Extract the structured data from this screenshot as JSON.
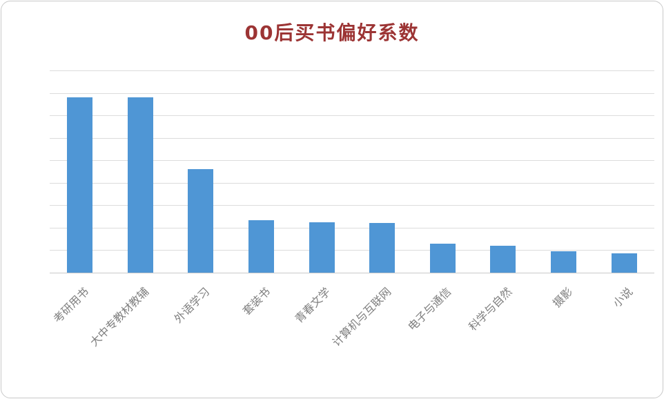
{
  "page": {
    "background": "#ffffff",
    "card_border_color": "#c9c9c9"
  },
  "chart_data": {
    "type": "bar",
    "title": "00后买书偏好系数",
    "categories": [
      "考研用书",
      "大中专教材教辅",
      "外语学习",
      "套装书",
      "青春文学",
      "计算机与互联网",
      "电子与通信",
      "科学与自然",
      "摄影",
      "小说"
    ],
    "values": [
      7.8,
      7.8,
      4.6,
      2.35,
      2.25,
      2.2,
      1.3,
      1.2,
      0.95,
      0.85
    ],
    "xlabel": "",
    "ylabel": "",
    "ylim": [
      0,
      9
    ],
    "gridline_intervals": 9,
    "grid": "horizontal",
    "legend": "none",
    "y_tick_labels_visible": false,
    "colors": {
      "bar": "#4f96d5",
      "gridline": "#dcdcdc",
      "axis_line": "#c9c9c9",
      "x_labels": "#7f7f7f",
      "title": "#9c3434"
    }
  }
}
